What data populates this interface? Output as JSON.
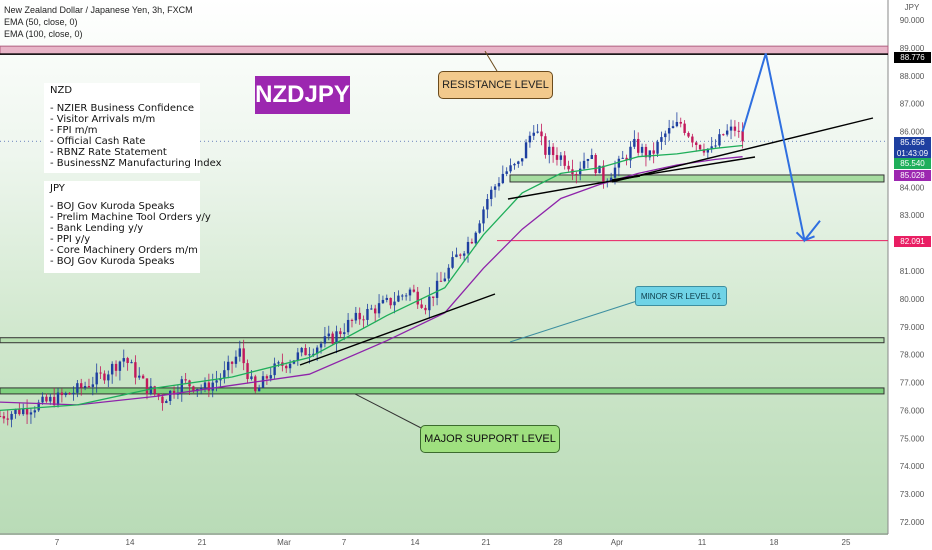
{
  "header": {
    "title": "New Zealand Dollar / Japanese Yen, 3h, FXCM",
    "ema50": "EMA (50, close, 0)",
    "ema100": "EMA (100, close, 0)"
  },
  "symbol_badge": "NZDJPY",
  "nzd_box": {
    "title": "NZD",
    "items": [
      "- NZIER Business Confidence",
      "- Visitor Arrivals m/m",
      "- FPI m/m",
      "- Official Cash Rate",
      "- RBNZ Rate Statement",
      "- BusinessNZ Manufacturing Index"
    ]
  },
  "jpy_box": {
    "title": "JPY",
    "items": [
      "- BOJ Gov Kuroda Speaks",
      "- Prelim Machine Tool Orders y/y",
      "- Bank Lending y/y",
      "- PPI y/y",
      "- Core Machinery Orders m/m",
      "- BOJ Gov Kuroda Speaks"
    ]
  },
  "annotations": {
    "resistance": "RESISTANCE LEVEL",
    "major_support": "MAJOR SUPPORT LEVEL",
    "minor_sr": "MINOR S/R LEVEL 01"
  },
  "price_tags": {
    "resistance": "88.776",
    "last": "85.656",
    "countdown": "01:43:09",
    "ema50": "85.540",
    "ema100": "85.028",
    "target": "82.091"
  },
  "colors": {
    "up": "#1e3fa0",
    "down": "#c2185b",
    "ema50": "#1fae5a",
    "ema100": "#8e24aa",
    "resistance_tag": "#000000",
    "last_tag": "#1e3fa0",
    "ema50_tag": "#1fae5a",
    "ema100_tag": "#9c27b0",
    "target_tag": "#e91e63",
    "projection": "#2f6fe0"
  },
  "chart_data": {
    "type": "candlestick",
    "title": "New Zealand Dollar / Japanese Yen, 3h, FXCM",
    "y_axis_label": "JPY",
    "ylim": [
      71.6,
      90.7
    ],
    "x_ticks": [
      "7",
      "14",
      "21",
      "Mar",
      "7",
      "14",
      "21",
      "28",
      "Apr",
      "11",
      "18",
      "25"
    ],
    "y_ticks": [
      "90.000",
      "89.000",
      "88.000",
      "87.000",
      "86.000",
      "85.000",
      "84.000",
      "83.000",
      "82.000",
      "81.000",
      "80.000",
      "79.000",
      "78.000",
      "77.000",
      "76.000",
      "75.000",
      "74.000",
      "73.000",
      "72.000"
    ],
    "y_tick_values": [
      90,
      89,
      88,
      87,
      86,
      85,
      84,
      83,
      82,
      81,
      80,
      79,
      78,
      77,
      76,
      75,
      74,
      73,
      72
    ],
    "close_path": [
      [
        0,
        75.8
      ],
      [
        10,
        76.2
      ],
      [
        18,
        76.6
      ],
      [
        26,
        77.2
      ],
      [
        32,
        77.9
      ],
      [
        38,
        76.8
      ],
      [
        42,
        76.4
      ],
      [
        47,
        77.0
      ],
      [
        53,
        76.8
      ],
      [
        58,
        77.3
      ],
      [
        62,
        78.1
      ],
      [
        66,
        76.6
      ],
      [
        70,
        77.4
      ],
      [
        75,
        77.8
      ],
      [
        80,
        78.2
      ],
      [
        86,
        78.6
      ],
      [
        90,
        79.1
      ],
      [
        96,
        79.6
      ],
      [
        101,
        79.9
      ],
      [
        106,
        80.3
      ],
      [
        110,
        79.8
      ],
      [
        114,
        80.6
      ],
      [
        118,
        81.5
      ],
      [
        122,
        82.2
      ],
      [
        126,
        83.6
      ],
      [
        130,
        84.5
      ],
      [
        134,
        84.8
      ],
      [
        138,
        86.2
      ],
      [
        141,
        85.3
      ],
      [
        145,
        85.1
      ],
      [
        149,
        84.6
      ],
      [
        152,
        85.2
      ],
      [
        156,
        84.3
      ],
      [
        160,
        84.8
      ],
      [
        164,
        85.5
      ],
      [
        168,
        85.1
      ],
      [
        172,
        85.9
      ],
      [
        176,
        86.3
      ],
      [
        180,
        85.6
      ],
      [
        184,
        85.3
      ],
      [
        187,
        85.9
      ],
      [
        190,
        86.1
      ],
      [
        192,
        85.7
      ]
    ],
    "ema50": [
      [
        0,
        76.0
      ],
      [
        20,
        76.2
      ],
      [
        40,
        76.8
      ],
      [
        60,
        77.2
      ],
      [
        80,
        77.9
      ],
      [
        100,
        79.4
      ],
      [
        115,
        80.4
      ],
      [
        125,
        82.3
      ],
      [
        135,
        83.8
      ],
      [
        145,
        84.5
      ],
      [
        155,
        84.7
      ],
      [
        165,
        85.1
      ],
      [
        175,
        85.2
      ],
      [
        185,
        85.4
      ],
      [
        192,
        85.5
      ]
    ],
    "ema100": [
      [
        0,
        76.3
      ],
      [
        20,
        76.2
      ],
      [
        40,
        76.5
      ],
      [
        60,
        76.9
      ],
      [
        80,
        77.3
      ],
      [
        100,
        78.5
      ],
      [
        115,
        79.5
      ],
      [
        125,
        81.1
      ],
      [
        135,
        82.5
      ],
      [
        145,
        83.6
      ],
      [
        155,
        84.1
      ],
      [
        165,
        84.5
      ],
      [
        175,
        84.8
      ],
      [
        185,
        85.0
      ],
      [
        192,
        85.1
      ]
    ],
    "levels": {
      "resistance": 88.776,
      "major_support": 76.7,
      "minor_sr": 78.5,
      "support_zone": 84.3,
      "target": 82.091
    },
    "projection": [
      [
        192,
        86.0
      ],
      [
        198,
        88.8
      ],
      [
        208,
        82.1
      ],
      [
        212,
        82.8
      ]
    ]
  }
}
